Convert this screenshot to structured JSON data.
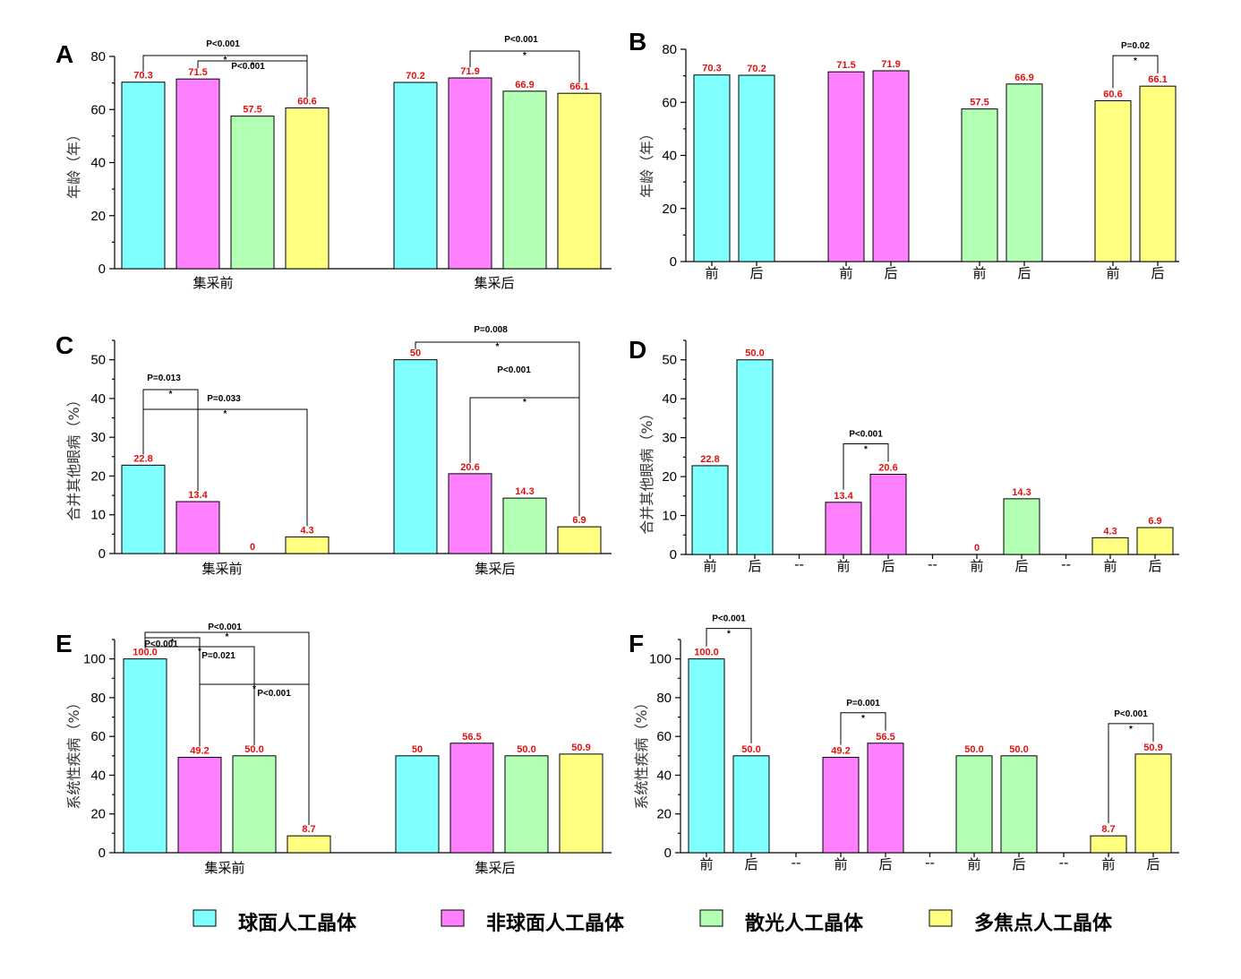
{
  "colors": {
    "cyan": "#80FFFF",
    "magenta": "#FF80FF",
    "green": "#B3FFB3",
    "yellow": "#FFFF80",
    "value_label": "#E01010"
  },
  "legend": [
    {
      "label": "球面人工晶体",
      "color": "#80FFFF"
    },
    {
      "label": "非球面人工晶体",
      "color": "#FF80FF"
    },
    {
      "label": "散光人工晶体",
      "color": "#B3FFB3"
    },
    {
      "label": "多焦点人工晶体",
      "color": "#FFFF80"
    }
  ],
  "chart_data": [
    {
      "panel": "A",
      "type": "bar",
      "ylabel": "年龄（年）",
      "ylim": [
        0,
        80
      ],
      "yticks": [
        0,
        20,
        40,
        60,
        80
      ],
      "groups": [
        {
          "label": "集采前",
          "values": [
            70.3,
            71.5,
            57.5,
            60.6
          ],
          "value_labels": [
            "70.3",
            "71.5",
            "57.5",
            "60.6"
          ]
        },
        {
          "label": "集采后",
          "values": [
            70.2,
            71.9,
            66.9,
            66.1
          ],
          "value_labels": [
            "70.2",
            "71.9",
            "66.9",
            "66.1"
          ]
        }
      ],
      "comparisons": [
        {
          "group": 0,
          "from": 0,
          "to": 3,
          "text": "P<0.001",
          "star": "*"
        },
        {
          "group": 0,
          "from": 1,
          "to": 3,
          "text": "P<0.001",
          "star": "*"
        },
        {
          "group": 1,
          "from": 1,
          "to": 3,
          "text": "P<0.001",
          "star": "*"
        }
      ]
    },
    {
      "panel": "B",
      "type": "bar",
      "ylabel": "年龄（年）",
      "ylim": [
        0,
        80
      ],
      "yticks": [
        0,
        20,
        40,
        60,
        80
      ],
      "pairs": [
        {
          "before": 70.3,
          "after": 70.2,
          "before_label": "70.3",
          "after_label": "70.2",
          "color": "#80FFFF"
        },
        {
          "before": 71.5,
          "after": 71.9,
          "before_label": "71.5",
          "after_label": "71.9",
          "color": "#FF80FF"
        },
        {
          "before": 57.5,
          "after": 66.9,
          "before_label": "57.5",
          "after_label": "66.9",
          "color": "#B3FFB3"
        },
        {
          "before": 60.6,
          "after": 66.1,
          "before_label": "60.6",
          "after_label": "66.1",
          "color": "#FFFF80"
        }
      ],
      "tick_before": "前",
      "tick_after": "后",
      "separator": "",
      "comparisons": [
        {
          "pair": 3,
          "text": "P=0.02",
          "star": "*"
        }
      ]
    },
    {
      "panel": "C",
      "type": "bar",
      "ylabel": "合并其他眼病（%）",
      "ylim": [
        0,
        55
      ],
      "yticks": [
        0,
        10,
        20,
        30,
        40,
        50
      ],
      "groups": [
        {
          "label": "集采前",
          "values": [
            22.8,
            13.4,
            0,
            4.3
          ],
          "value_labels": [
            "22.8",
            "13.4",
            "0",
            "4.3"
          ]
        },
        {
          "label": "集采后",
          "values": [
            50,
            20.6,
            14.3,
            6.9
          ],
          "value_labels": [
            "50",
            "20.6",
            "14.3",
            "6.9"
          ]
        }
      ],
      "comparisons": [
        {
          "group": 0,
          "from": 0,
          "to": 1,
          "text": "P=0.013",
          "star": "*"
        },
        {
          "group": 0,
          "from": 0,
          "to": 3,
          "text": "P=0.033",
          "star": "*"
        },
        {
          "group": 1,
          "from": 0,
          "to": 3,
          "text": "P=0.008",
          "star": "*"
        },
        {
          "group": 1,
          "from": 1,
          "to": 3,
          "text": "P<0.001",
          "star": "*"
        }
      ]
    },
    {
      "panel": "D",
      "type": "bar",
      "ylabel": "合并其他眼病（%）",
      "ylim": [
        0,
        55
      ],
      "yticks": [
        0,
        10,
        20,
        30,
        40,
        50
      ],
      "pairs": [
        {
          "before": 22.8,
          "after": 50.0,
          "before_label": "22.8",
          "after_label": "50.0",
          "color": "#80FFFF"
        },
        {
          "before": 13.4,
          "after": 20.6,
          "before_label": "13.4",
          "after_label": "20.6",
          "color": "#FF80FF"
        },
        {
          "before": 0,
          "after": 14.3,
          "before_label": "0",
          "after_label": "14.3",
          "color": "#B3FFB3"
        },
        {
          "before": 4.3,
          "after": 6.9,
          "before_label": "4.3",
          "after_label": "6.9",
          "color": "#FFFF80"
        }
      ],
      "tick_before": "前",
      "tick_after": "后",
      "separator": "--",
      "comparisons": [
        {
          "pair": 1,
          "text": "P<0.001",
          "star": "*"
        }
      ]
    },
    {
      "panel": "E",
      "type": "bar",
      "ylabel": "系统性疾病（%）",
      "ylim": [
        0,
        110
      ],
      "yticks": [
        0,
        20,
        40,
        60,
        80,
        100
      ],
      "groups": [
        {
          "label": "集采前",
          "values": [
            100.0,
            49.2,
            50.0,
            8.7
          ],
          "value_labels": [
            "100.0",
            "49.2",
            "50.0",
            "8.7"
          ]
        },
        {
          "label": "集采后",
          "values": [
            50,
            56.5,
            50.0,
            50.9
          ],
          "value_labels": [
            "50",
            "56.5",
            "50.0",
            "50.9"
          ]
        }
      ],
      "comparisons": [
        {
          "group": 0,
          "from": 0,
          "to": 3,
          "text": "P<0.001",
          "star": "*"
        },
        {
          "group": 0,
          "from": 0,
          "to": 1,
          "text": "P<0.001",
          "star": "*"
        },
        {
          "group": 0,
          "from": 0,
          "to": 2,
          "text": "P=0.021",
          "star": "*"
        },
        {
          "group": 0,
          "from": 1,
          "to": 3,
          "text": "P<0.001",
          "star": "*"
        }
      ]
    },
    {
      "panel": "F",
      "type": "bar",
      "ylabel": "系统性疾病（%）",
      "ylim": [
        0,
        110
      ],
      "yticks": [
        0,
        20,
        40,
        60,
        80,
        100
      ],
      "pairs": [
        {
          "before": 100.0,
          "after": 50.0,
          "before_label": "100.0",
          "after_label": "50.0",
          "color": "#80FFFF"
        },
        {
          "before": 49.2,
          "after": 56.5,
          "before_label": "49.2",
          "after_label": "56.5",
          "color": "#FF80FF"
        },
        {
          "before": 50.0,
          "after": 50.0,
          "before_label": "50.0",
          "after_label": "50.0",
          "color": "#B3FFB3"
        },
        {
          "before": 8.7,
          "after": 50.9,
          "before_label": "8.7",
          "after_label": "50.9",
          "color": "#FFFF80"
        }
      ],
      "tick_before": "前",
      "tick_after": "后",
      "separator": "--",
      "comparisons": [
        {
          "pair": 0,
          "text": "P<0.001",
          "star": "*"
        },
        {
          "pair": 1,
          "text": "P=0.001",
          "star": "*"
        },
        {
          "pair": 3,
          "text": "P<0.001",
          "star": "*"
        }
      ]
    }
  ]
}
